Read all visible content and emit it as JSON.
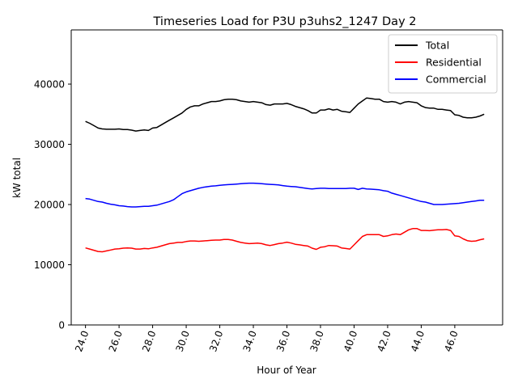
{
  "chart_data": {
    "type": "line",
    "title": "Timeseries Load for P3U p3uhs2_1247  Day 2",
    "xlabel": "Hour of Year",
    "ylabel": "kW total",
    "xlim": [
      23.15,
      48.85
    ],
    "ylim": [
      0,
      49000
    ],
    "xticks": [
      24,
      26,
      28,
      30,
      32,
      34,
      36,
      38,
      40,
      42,
      44,
      46
    ],
    "xtick_labels": [
      "24.0",
      "26.0",
      "28.0",
      "30.0",
      "32.0",
      "34.0",
      "36.0",
      "38.0",
      "40.0",
      "42.0",
      "44.0",
      "46.0"
    ],
    "yticks": [
      0,
      10000,
      20000,
      30000,
      40000
    ],
    "ytick_labels": [
      "0",
      "10000",
      "20000",
      "30000",
      "40000"
    ],
    "legend_position": "top-right",
    "grid": false,
    "x": [
      24.0,
      24.25,
      24.5,
      24.75,
      25.0,
      25.25,
      25.5,
      25.75,
      26.0,
      26.25,
      26.5,
      26.75,
      27.0,
      27.25,
      27.5,
      27.75,
      28.0,
      28.25,
      28.5,
      28.75,
      29.0,
      29.25,
      29.5,
      29.75,
      30.0,
      30.25,
      30.5,
      30.75,
      31.0,
      31.25,
      31.5,
      31.75,
      32.0,
      32.25,
      32.5,
      32.75,
      33.0,
      33.25,
      33.5,
      33.75,
      34.0,
      34.25,
      34.5,
      34.75,
      35.0,
      35.25,
      35.5,
      35.75,
      36.0,
      36.25,
      36.5,
      36.75,
      37.0,
      37.25,
      37.5,
      37.75,
      38.0,
      38.25,
      38.5,
      38.75,
      39.0,
      39.25,
      39.5,
      39.75,
      40.0,
      40.25,
      40.5,
      40.75,
      41.0,
      41.25,
      41.5,
      41.75,
      42.0,
      42.25,
      42.5,
      42.75,
      43.0,
      43.25,
      43.5,
      43.75,
      44.0,
      44.25,
      44.5,
      44.75,
      45.0,
      45.25,
      45.5,
      45.75,
      46.0,
      46.25,
      46.5,
      46.75,
      47.0,
      47.25,
      47.5,
      47.75
    ],
    "series": [
      {
        "name": "Total",
        "color": "#000000",
        "values": [
          33800,
          33500,
          33100,
          32700,
          32550,
          32500,
          32500,
          32500,
          32550,
          32450,
          32450,
          32350,
          32200,
          32300,
          32400,
          32300,
          32700,
          32800,
          33200,
          33600,
          34000,
          34400,
          34800,
          35200,
          35800,
          36200,
          36400,
          36400,
          36700,
          36900,
          37100,
          37100,
          37200,
          37400,
          37500,
          37500,
          37400,
          37200,
          37100,
          37000,
          37100,
          37000,
          36900,
          36600,
          36500,
          36700,
          36700,
          36700,
          36800,
          36600,
          36300,
          36100,
          35900,
          35600,
          35200,
          35200,
          35700,
          35700,
          35900,
          35700,
          35800,
          35500,
          35400,
          35300,
          36000,
          36700,
          37200,
          37700,
          37600,
          37500,
          37500,
          37100,
          37000,
          37100,
          37000,
          36700,
          37000,
          37100,
          37000,
          36900,
          36400,
          36100,
          36000,
          36000,
          35800,
          35800,
          35700,
          35600,
          34900,
          34800,
          34500,
          34400,
          34400,
          34500,
          34700,
          35000
        ]
      },
      {
        "name": "Residential",
        "color": "#ff0000",
        "values": [
          12800,
          12600,
          12400,
          12200,
          12150,
          12300,
          12450,
          12600,
          12650,
          12750,
          12800,
          12750,
          12600,
          12600,
          12700,
          12650,
          12800,
          12900,
          13100,
          13300,
          13500,
          13600,
          13700,
          13700,
          13850,
          13950,
          13950,
          13900,
          13950,
          14000,
          14050,
          14100,
          14100,
          14200,
          14200,
          14100,
          13900,
          13700,
          13600,
          13500,
          13550,
          13600,
          13500,
          13300,
          13200,
          13350,
          13500,
          13600,
          13750,
          13600,
          13400,
          13300,
          13200,
          13100,
          12750,
          12550,
          12900,
          13000,
          13200,
          13150,
          13100,
          12800,
          12700,
          12600,
          13300,
          14000,
          14700,
          15000,
          15000,
          15000,
          15000,
          14700,
          14800,
          15000,
          15100,
          15000,
          15400,
          15800,
          16000,
          16000,
          15700,
          15700,
          15650,
          15750,
          15800,
          15800,
          15850,
          15700,
          14800,
          14700,
          14300,
          14000,
          13900,
          13950,
          14150,
          14300
        ]
      },
      {
        "name": "Commercial",
        "color": "#0000ff",
        "values": [
          21000,
          20900,
          20700,
          20500,
          20400,
          20200,
          20050,
          19950,
          19800,
          19750,
          19650,
          19600,
          19600,
          19650,
          19700,
          19700,
          19800,
          19900,
          20100,
          20300,
          20500,
          20800,
          21300,
          21800,
          22100,
          22300,
          22500,
          22700,
          22850,
          22950,
          23050,
          23100,
          23200,
          23250,
          23300,
          23350,
          23400,
          23450,
          23500,
          23550,
          23550,
          23500,
          23450,
          23400,
          23350,
          23300,
          23250,
          23150,
          23050,
          23000,
          22950,
          22850,
          22750,
          22650,
          22600,
          22650,
          22700,
          22700,
          22650,
          22650,
          22650,
          22650,
          22650,
          22700,
          22700,
          22500,
          22700,
          22600,
          22550,
          22500,
          22450,
          22300,
          22200,
          21900,
          21700,
          21500,
          21300,
          21100,
          20900,
          20700,
          20500,
          20400,
          20200,
          20000,
          20000,
          20000,
          20050,
          20100,
          20150,
          20200,
          20300,
          20400,
          20500,
          20600,
          20700,
          20700
        ]
      }
    ]
  }
}
